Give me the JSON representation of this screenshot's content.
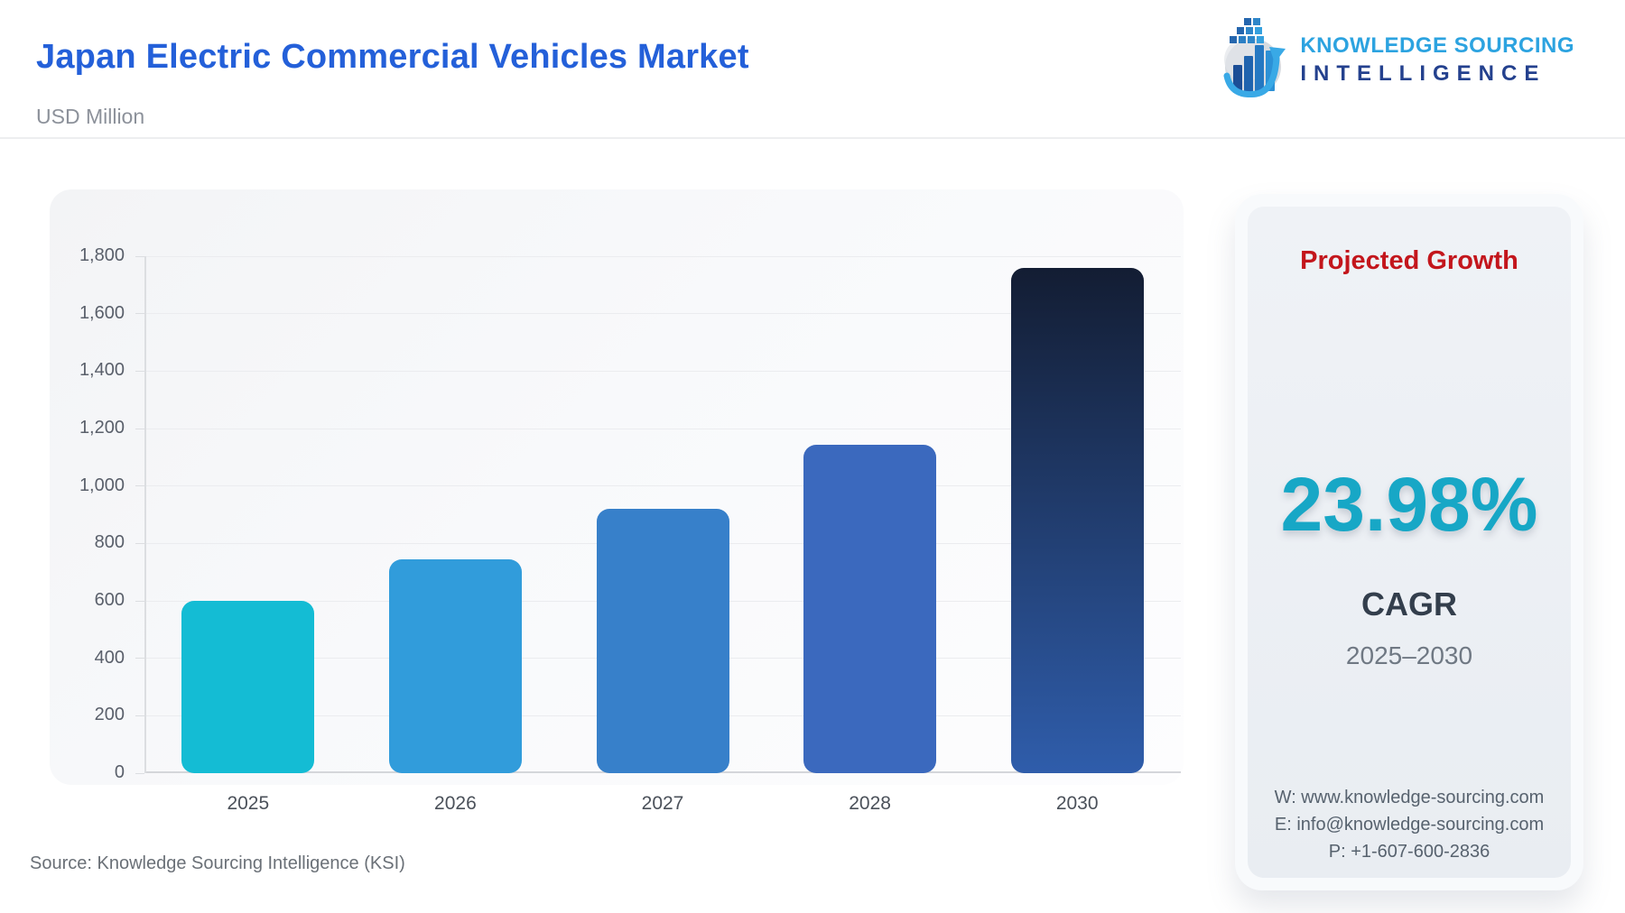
{
  "header": {
    "title": "Japan Electric Commercial Vehicles Market",
    "subtitle": "USD Million",
    "logo": {
      "line1": "KNOWLEDGE SOURCING",
      "line2": "INTELLIGENCE"
    }
  },
  "chart_data": {
    "type": "bar",
    "title": "Japan Electric Commercial Vehicles Market",
    "ylabel": "USD Million",
    "xlabel": "",
    "categories": [
      "2025",
      "2026",
      "2027",
      "2028",
      "2030"
    ],
    "values": [
      600,
      744,
      922,
      1144,
      1758
    ],
    "ylim": [
      0,
      1800
    ],
    "ytick_step": 200,
    "grid": true,
    "legend": "none",
    "bar_colors": [
      "#14BCD4",
      "#319CDB",
      "#3780CA",
      "#3B69BE",
      "gradient"
    ],
    "last_bar_gradient": [
      "#131D33",
      "#2F5DAB"
    ]
  },
  "panel": {
    "heading": "Projected Growth",
    "value": "23.98%",
    "value_label": "CAGR",
    "period": "2025–2030",
    "contact": {
      "website": "W: www.knowledge-sourcing.com",
      "email": "E: info@knowledge-sourcing.com",
      "phone": "P: +1-607-600-2836"
    }
  },
  "footer": {
    "source": "Source: Knowledge Sourcing Intelligence (KSI)"
  },
  "colors": {
    "title_blue": "#2460D9",
    "heading_red": "#C3161C",
    "value_teal": "#17A7C6",
    "logo_light_blue": "#2CA3E0",
    "logo_dark_blue": "#24418E"
  }
}
